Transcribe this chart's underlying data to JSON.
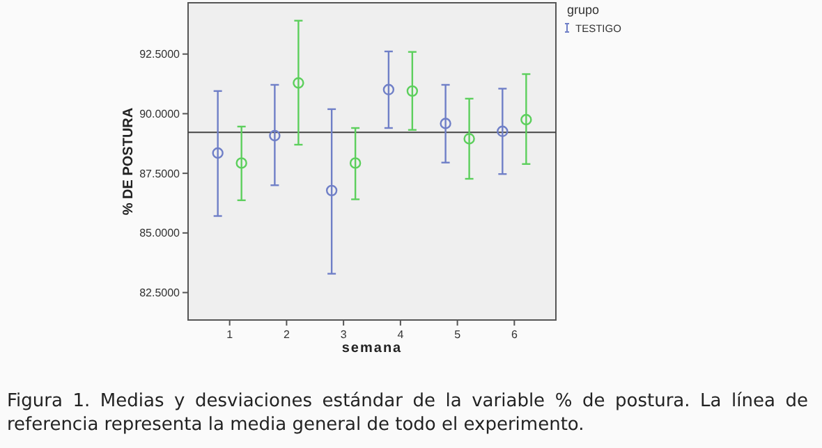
{
  "chart_data": {
    "type": "scatter",
    "xlabel": "semana",
    "ylabel": "% DE POSTURA",
    "legend_title": "grupo",
    "legend": "top right",
    "marker": "circle",
    "categories": [
      "1",
      "2",
      "3",
      "4",
      "5",
      "6"
    ],
    "ylim": [
      81.35,
      94.65
    ],
    "yticks": [
      {
        "value": 82.5,
        "label": "82.5000"
      },
      {
        "value": 85,
        "label": "85.0000"
      },
      {
        "value": 87.5,
        "label": "87.5000"
      },
      {
        "value": 90,
        "label": "90.0000"
      },
      {
        "value": 92.5,
        "label": "92.5000"
      }
    ],
    "series": [
      {
        "name": "TESTIGO",
        "color": "#6f7fc7",
        "values": [
          88.35,
          89.08,
          86.78,
          91.01,
          89.59,
          89.26
        ],
        "errors": [
          [
            85.71,
            90.95
          ],
          [
            87.0,
            91.21
          ],
          [
            83.29,
            90.19
          ],
          [
            89.4,
            92.61
          ],
          [
            87.95,
            91.21
          ],
          [
            87.47,
            91.05
          ]
        ]
      },
      {
        "color": "#5ccf5c",
        "values": [
          87.93,
          91.29,
          87.93,
          90.95,
          88.95,
          89.75
        ],
        "errors": [
          [
            86.37,
            89.46
          ],
          [
            88.7,
            93.9
          ],
          [
            86.41,
            89.4
          ],
          [
            89.32,
            92.59
          ],
          [
            87.27,
            90.63
          ],
          [
            87.89,
            91.66
          ]
        ]
      }
    ],
    "ref_lines": [
      {
        "axis": "y",
        "value": 89.22,
        "color": "#444444"
      }
    ],
    "annotations": [
      "Figura 1. Medias y desviaciones estándar de la variable % de postura. La línea de referencia representa la media general de todo  el experimento."
    ]
  }
}
